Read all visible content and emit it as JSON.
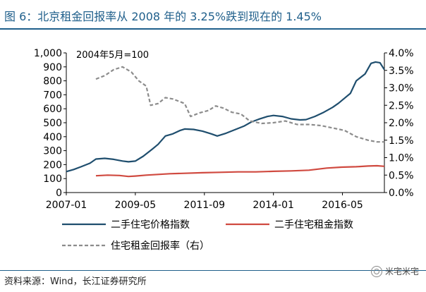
{
  "header": {
    "title": "图 6：北京租金回报率从 2008 年的 3.25%跌到现在的 1.45%"
  },
  "source_text": "资料来源：Wind，长江证券研究所",
  "watermark": {
    "text": "米宅米宅",
    "icon": "wechat-icon"
  },
  "chart_data": {
    "type": "line",
    "title": "图 6：北京租金回报率从 2008 年的 3.25%跌到现在的 1.45%",
    "annotation": "2004年5月=100",
    "x_range": [
      2007.0,
      2017.75
    ],
    "x_ticks": [
      {
        "label": "2007-01",
        "value": 2007.0
      },
      {
        "label": "2009-05",
        "value": 2009.333
      },
      {
        "label": "2011-09",
        "value": 2011.667
      },
      {
        "label": "2014-01",
        "value": 2014.0
      },
      {
        "label": "2016-05",
        "value": 2016.333
      }
    ],
    "y_left": {
      "range": [
        0,
        1000
      ],
      "ticks": [
        {
          "label": "0",
          "value": 0
        },
        {
          "label": "100",
          "value": 100
        },
        {
          "label": "200",
          "value": 200
        },
        {
          "label": "300",
          "value": 300
        },
        {
          "label": "400",
          "value": 400
        },
        {
          "label": "500",
          "value": 500
        },
        {
          "label": "600",
          "value": 600
        },
        {
          "label": "700",
          "value": 700
        },
        {
          "label": "800",
          "value": 800
        },
        {
          "label": "900",
          "value": 900
        },
        {
          "label": "1,000",
          "value": 1000
        }
      ]
    },
    "y_right": {
      "range": [
        0.0,
        4.0
      ],
      "ticks": [
        {
          "label": "0.0%",
          "value": 0.0
        },
        {
          "label": "0.5%",
          "value": 0.5
        },
        {
          "label": "1.0%",
          "value": 1.0
        },
        {
          "label": "1.5%",
          "value": 1.5
        },
        {
          "label": "2.0%",
          "value": 2.0
        },
        {
          "label": "2.5%",
          "value": 2.5
        },
        {
          "label": "3.0%",
          "value": 3.0
        },
        {
          "label": "3.5%",
          "value": 3.5
        },
        {
          "label": "4.0%",
          "value": 4.0
        }
      ]
    },
    "grid": false,
    "legend_placement": "bottom",
    "series": [
      {
        "name": "二手住宅价格指数",
        "axis": "left",
        "color": "#1f4e6e",
        "style": "solid",
        "points": [
          [
            2007.0,
            150
          ],
          [
            2007.25,
            165
          ],
          [
            2007.5,
            185
          ],
          [
            2007.8,
            210
          ],
          [
            2008.0,
            240
          ],
          [
            2008.3,
            245
          ],
          [
            2008.6,
            238
          ],
          [
            2008.9,
            226
          ],
          [
            2009.1,
            220
          ],
          [
            2009.33,
            225
          ],
          [
            2009.6,
            260
          ],
          [
            2009.9,
            310
          ],
          [
            2010.1,
            345
          ],
          [
            2010.35,
            405
          ],
          [
            2010.6,
            420
          ],
          [
            2010.85,
            445
          ],
          [
            2011.0,
            455
          ],
          [
            2011.3,
            452
          ],
          [
            2011.6,
            440
          ],
          [
            2011.9,
            420
          ],
          [
            2012.1,
            405
          ],
          [
            2012.4,
            425
          ],
          [
            2012.7,
            450
          ],
          [
            2013.0,
            475
          ],
          [
            2013.25,
            505
          ],
          [
            2013.5,
            525
          ],
          [
            2013.8,
            545
          ],
          [
            2014.0,
            552
          ],
          [
            2014.3,
            545
          ],
          [
            2014.6,
            528
          ],
          [
            2014.9,
            520
          ],
          [
            2015.1,
            522
          ],
          [
            2015.4,
            545
          ],
          [
            2015.7,
            575
          ],
          [
            2016.0,
            610
          ],
          [
            2016.2,
            640
          ],
          [
            2016.4,
            675
          ],
          [
            2016.6,
            710
          ],
          [
            2016.8,
            800
          ],
          [
            2017.1,
            850
          ],
          [
            2017.3,
            925
          ],
          [
            2017.45,
            935
          ],
          [
            2017.6,
            930
          ],
          [
            2017.75,
            880
          ]
        ]
      },
      {
        "name": "二手住宅租金指数",
        "axis": "left",
        "color": "#d04a40",
        "style": "solid",
        "points": [
          [
            2008.0,
            120
          ],
          [
            2008.4,
            125
          ],
          [
            2008.8,
            122
          ],
          [
            2009.1,
            115
          ],
          [
            2009.33,
            118
          ],
          [
            2009.7,
            125
          ],
          [
            2010.1,
            130
          ],
          [
            2010.5,
            135
          ],
          [
            2011.0,
            138
          ],
          [
            2011.6,
            142
          ],
          [
            2012.2,
            145
          ],
          [
            2012.8,
            148
          ],
          [
            2013.4,
            148
          ],
          [
            2014.0,
            152
          ],
          [
            2014.6,
            155
          ],
          [
            2015.2,
            160
          ],
          [
            2015.8,
            175
          ],
          [
            2016.3,
            182
          ],
          [
            2016.8,
            185
          ],
          [
            2017.2,
            190
          ],
          [
            2017.5,
            192
          ],
          [
            2017.75,
            188
          ]
        ]
      },
      {
        "name": "住宅租金回报率（右）",
        "axis": "right",
        "color": "#8c8c8c",
        "style": "dashed",
        "points": [
          [
            2008.0,
            3.25
          ],
          [
            2008.3,
            3.35
          ],
          [
            2008.6,
            3.52
          ],
          [
            2008.9,
            3.6
          ],
          [
            2009.2,
            3.45
          ],
          [
            2009.45,
            3.2
          ],
          [
            2009.7,
            3.05
          ],
          [
            2009.85,
            2.5
          ],
          [
            2010.1,
            2.55
          ],
          [
            2010.35,
            2.72
          ],
          [
            2010.6,
            2.68
          ],
          [
            2010.85,
            2.6
          ],
          [
            2011.0,
            2.55
          ],
          [
            2011.2,
            2.18
          ],
          [
            2011.5,
            2.28
          ],
          [
            2011.8,
            2.35
          ],
          [
            2012.05,
            2.48
          ],
          [
            2012.3,
            2.42
          ],
          [
            2012.6,
            2.3
          ],
          [
            2012.9,
            2.25
          ],
          [
            2013.2,
            2.05
          ],
          [
            2013.6,
            1.98
          ],
          [
            2014.0,
            2.0
          ],
          [
            2014.4,
            2.05
          ],
          [
            2014.8,
            1.95
          ],
          [
            2015.2,
            1.95
          ],
          [
            2015.6,
            1.92
          ],
          [
            2016.0,
            1.85
          ],
          [
            2016.4,
            1.78
          ],
          [
            2016.8,
            1.6
          ],
          [
            2017.2,
            1.5
          ],
          [
            2017.5,
            1.45
          ],
          [
            2017.75,
            1.45
          ]
        ]
      }
    ]
  }
}
